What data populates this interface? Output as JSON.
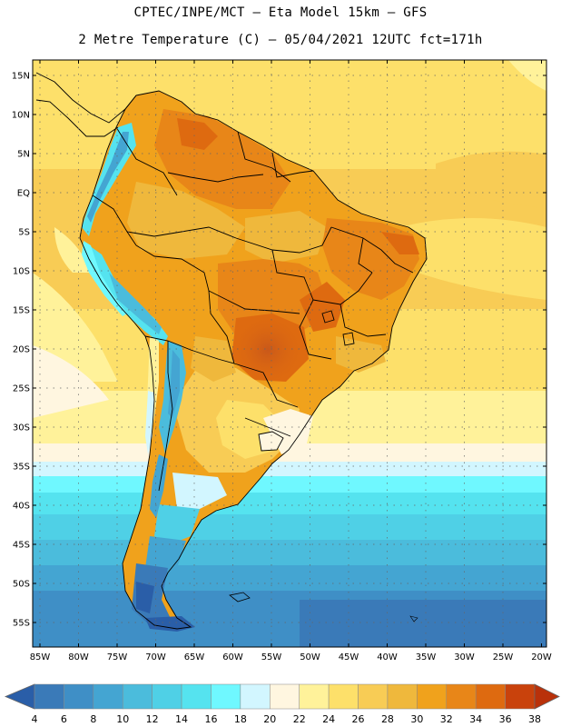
{
  "title": {
    "line1": "CPTEC/INPE/MCT –  Eta Model 15km – GFS",
    "line2": "2 Metre Temperature (C) – 05/04/2021 12UTC fct=171h"
  },
  "map": {
    "lat_labels": [
      "15N",
      "10N",
      "5N",
      "EQ",
      "5S",
      "10S",
      "15S",
      "20S",
      "25S",
      "30S",
      "35S",
      "40S",
      "45S",
      "50S",
      "55S"
    ],
    "lon_labels": [
      "85W",
      "80W",
      "75W",
      "70W",
      "65W",
      "60W",
      "55W",
      "50W",
      "45W",
      "40W",
      "35W",
      "30W",
      "25W",
      "20W"
    ]
  },
  "colorbar": {
    "labels": [
      "4",
      "6",
      "8",
      "10",
      "12",
      "14",
      "16",
      "18",
      "20",
      "22",
      "24",
      "26",
      "28",
      "30",
      "32",
      "34",
      "36",
      "38"
    ],
    "colors": [
      "#2a5ea8",
      "#3a7ab8",
      "#3f8fc6",
      "#44a5d2",
      "#4bbcdc",
      "#4fd0e6",
      "#55e3ef",
      "#6ff8ff",
      "#d2f6ff",
      "#fff6e0",
      "#fff29a",
      "#fde06a",
      "#f8cc55",
      "#efb83c",
      "#f0a21c",
      "#e88618",
      "#de6a10",
      "#c9420c",
      "#b9310a"
    ]
  }
}
